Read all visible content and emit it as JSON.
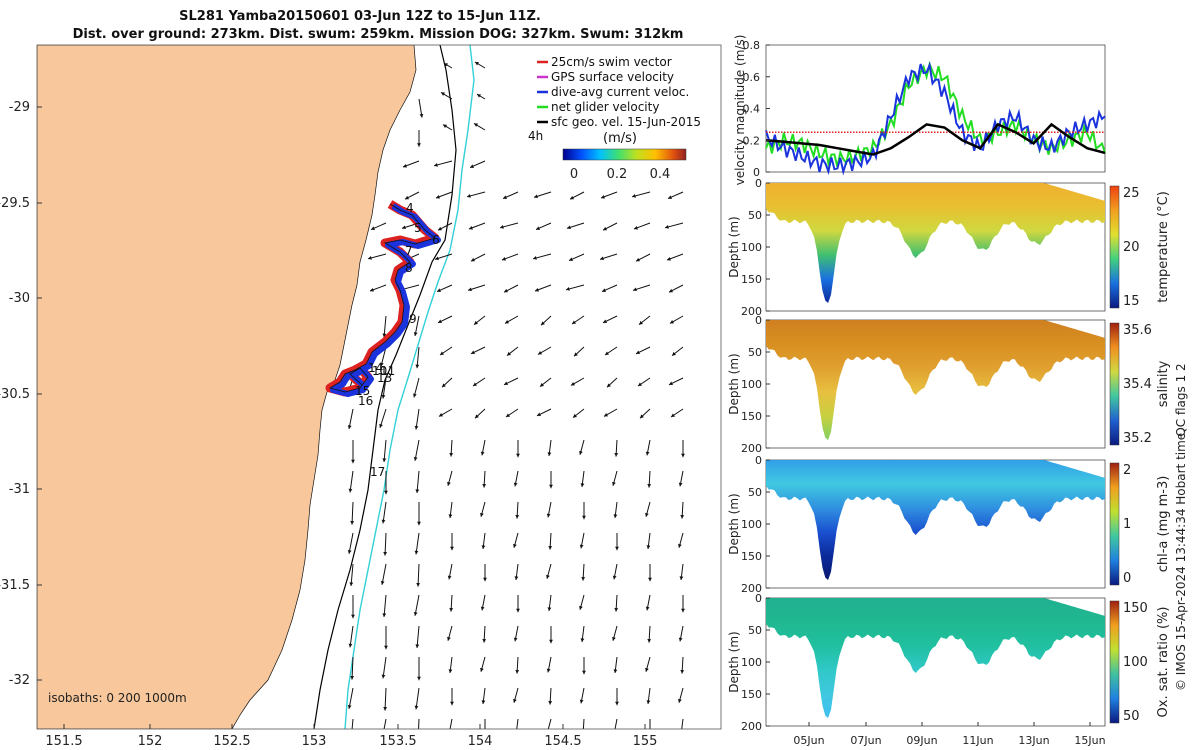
{
  "title": {
    "line1": "SL281 Yamba20150601 03-Jun 12Z to 15-Jun 11Z.",
    "line2": "Dist. over ground: 273km. Dist. swum: 259km. Mission DOG: 327km. Swum: 312km"
  },
  "map": {
    "lon_ticks": [
      "151.5",
      "152",
      "152.5",
      "153",
      "153.5",
      "154",
      "154.5",
      "155"
    ],
    "lat_ticks": [
      "-29",
      "-29.5",
      "-30",
      "-30.5",
      "-31",
      "-31.5",
      "-32"
    ],
    "isobaths_text": "isobaths: 0   200  1000m",
    "colors": {
      "land": "#f8c89c",
      "ocean": "#ffffff",
      "isobath_200": "#000000",
      "isobath_1000": "#33d0d8"
    },
    "legend": {
      "items": [
        {
          "label": "25cm/s swim vector",
          "color": "#dd2222"
        },
        {
          "label": "GPS surface velocity",
          "color": "#cc33cc"
        },
        {
          "label": "dive-avg current veloc.",
          "color": "#1a33dd"
        },
        {
          "label": "net glider velocity",
          "color": "#22dd22"
        },
        {
          "label": "sfc geo. vel. 15-Jun-2015",
          "color": "#000000"
        }
      ],
      "timer_label": "4h",
      "colorbar_unit": "(m/s)",
      "colorbar_ticks": [
        "0",
        "0.2",
        "0.4"
      ]
    },
    "track_labels": [
      "4",
      "5",
      "6",
      "7",
      "8",
      "9",
      "10",
      "11",
      "13",
      "14",
      "15",
      "16",
      "17"
    ],
    "track_colors": {
      "swim": "#dd2222",
      "current": "#1a33dd"
    }
  },
  "velocity_panel": {
    "ylabel": "velocity magnitude (m/s)",
    "yticks": [
      "0",
      "0.2",
      "0.4",
      "0.6",
      "0.8"
    ],
    "ylim": [
      0,
      0.8
    ],
    "series_colors": {
      "net": "#22dd22",
      "current": "#1a33dd",
      "swim": "#dd2222",
      "geo": "#000000"
    }
  },
  "depth_panels": [
    {
      "id": "temperature",
      "ylabel": "Depth (m)",
      "cbar_label": "temperature (°C)",
      "cbar_ticks": [
        "25",
        "20",
        "15"
      ],
      "yticks": [
        "0",
        "50",
        "100",
        "150",
        "200"
      ]
    },
    {
      "id": "salinity",
      "ylabel": "Depth (m)",
      "cbar_label": "salinity",
      "cbar_ticks": [
        "35.6",
        "35.4",
        "35.2"
      ],
      "yticks": [
        "0",
        "50",
        "100",
        "150",
        "200"
      ]
    },
    {
      "id": "chla",
      "ylabel": "Depth (m)",
      "cbar_label": "chl-a (mg m-3)",
      "cbar_ticks": [
        "2",
        "1",
        "0"
      ],
      "yticks": [
        "0",
        "50",
        "100",
        "150",
        "200"
      ]
    },
    {
      "id": "oxygen",
      "ylabel": "Depth (m)",
      "cbar_label": "Ox. sat. ratio (%)",
      "cbar_ticks": [
        "150",
        "100",
        "50"
      ],
      "yticks": [
        "0",
        "50",
        "100",
        "150",
        "200"
      ]
    }
  ],
  "time_ticks": [
    "05Jun",
    "07Jun",
    "09Jun",
    "11Jun",
    "13Jun",
    "15Jun"
  ],
  "qc_text": "QC flags 1  2",
  "copyright": "© IMOS 15-Apr-2024 13:44:34 Hobart time.",
  "chart_data": {
    "type": "line",
    "description_free": true,
    "x_dates": [
      "05Jun",
      "07Jun",
      "09Jun",
      "11Jun",
      "13Jun",
      "15Jun"
    ],
    "velocity_series": [
      {
        "name": "net glider velocity",
        "values": [
          0.15,
          0.2,
          0.18,
          0.12,
          0.08,
          0.1,
          0.15,
          0.3,
          0.55,
          0.65,
          0.6,
          0.35,
          0.2,
          0.25,
          0.3,
          0.2,
          0.15,
          0.2,
          0.25,
          0.12
        ]
      },
      {
        "name": "dive-avg current veloc.",
        "values": [
          0.22,
          0.15,
          0.1,
          0.05,
          0.04,
          0.06,
          0.1,
          0.35,
          0.6,
          0.65,
          0.5,
          0.25,
          0.15,
          0.3,
          0.35,
          0.2,
          0.15,
          0.25,
          0.3,
          0.35
        ]
      },
      {
        "name": "25cm/s swim vector",
        "values": [
          0.25,
          0.25,
          0.25,
          0.25,
          0.25,
          0.25,
          0.25,
          0.25,
          0.25,
          0.25,
          0.25,
          0.25,
          0.25,
          0.25,
          0.25,
          0.25,
          0.25,
          0.25,
          0.25,
          0.25
        ]
      },
      {
        "name": "sfc geo. vel. 15-Jun-2015",
        "values": [
          0.2,
          0.19,
          0.18,
          0.17,
          0.15,
          0.13,
          0.11,
          0.15,
          0.22,
          0.3,
          0.28,
          0.2,
          0.15,
          0.3,
          0.25,
          0.18,
          0.3,
          0.22,
          0.15,
          0.12
        ]
      }
    ]
  }
}
